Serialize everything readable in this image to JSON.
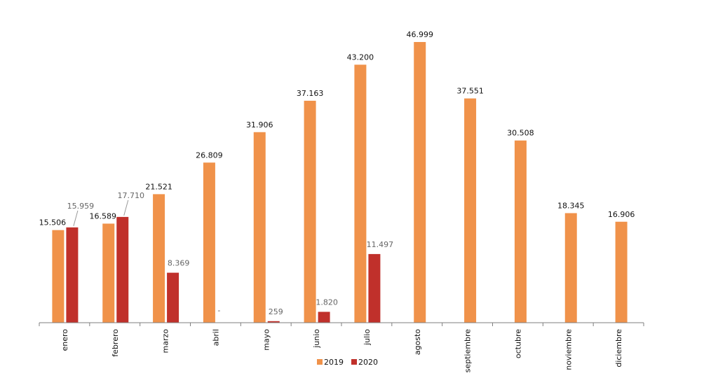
{
  "chart_data": {
    "type": "bar",
    "categories": [
      "enero",
      "febrero",
      "marzo",
      "abril",
      "mayo",
      "junio",
      "julio",
      "agosto",
      "septiembre",
      "octubre",
      "noviembre",
      "diciembre"
    ],
    "series": [
      {
        "name": "2019",
        "color": "#F0924A",
        "values": [
          15506,
          16589,
          21521,
          26809,
          31906,
          37163,
          43200,
          46999,
          37551,
          30508,
          18345,
          16906
        ],
        "labels": [
          "15.506",
          "16.589",
          "21.521",
          "26.809",
          "31.906",
          "37.163",
          "43.200",
          "46.999",
          "37.551",
          "30.508",
          "18.345",
          "16.906"
        ]
      },
      {
        "name": "2020",
        "color": "#C0302B",
        "values": [
          15959,
          17710,
          8369,
          0,
          259,
          1820,
          11497,
          null,
          null,
          null,
          null,
          null
        ],
        "labels": [
          "15.959",
          "17.710",
          "8.369",
          "-",
          "259",
          "1.820",
          "11.497",
          null,
          null,
          null,
          null,
          null
        ]
      }
    ],
    "ylim": [
      0,
      47000
    ],
    "legend_position": "bottom",
    "grid": false
  }
}
